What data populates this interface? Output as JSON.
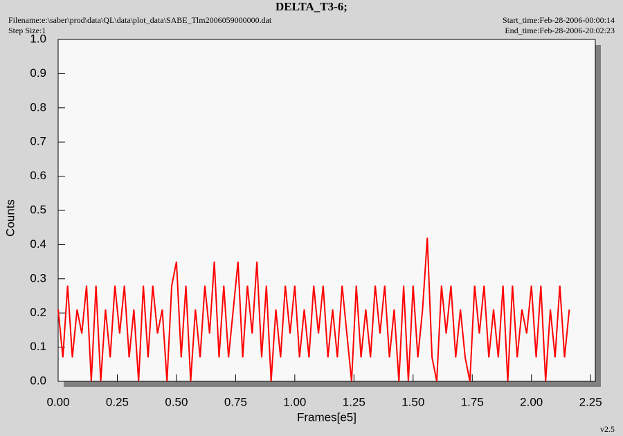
{
  "chart_data": {
    "type": "line",
    "title": "DELTA_T3-6;",
    "filename": "Filename:e:\\saber\\prod\\data\\QL\\data\\plot_data\\SABE_Tlm2006059000000.dat",
    "step_size": "Step Size:1",
    "start_time": "Start_time:Feb-28-2006-00:00:14",
    "end_time": "End_time:Feb-28-2006-20:02:23",
    "x_label": "Frames[e5]",
    "y_label": "Counts",
    "version": "v2.5",
    "color": "#ff0000",
    "xlim": [
      0,
      2.27
    ],
    "ylim": [
      0,
      1
    ],
    "xticks": [
      {
        "value": 0,
        "label": "0.00"
      },
      0.25,
      {
        "value": 0.5,
        "label": "0.50"
      },
      0.75,
      {
        "value": 1,
        "label": "1.00"
      },
      1.25,
      {
        "value": 1.5,
        "label": "1.50"
      },
      1.75,
      {
        "value": 2,
        "label": "2.00"
      },
      2.25
    ],
    "yticks": [
      {
        "value": 0,
        "label": "0.0"
      },
      0.1,
      0.2,
      0.3,
      0.4,
      0.5,
      0.6,
      0.7,
      0.8,
      0.9,
      {
        "value": 1,
        "label": "1.0"
      }
    ],
    "x": [
      0,
      0.02,
      0.04,
      0.06,
      0.08,
      0.1,
      0.12,
      0.14,
      0.16,
      0.18,
      0.2,
      0.22,
      0.24,
      0.26,
      0.28,
      0.3,
      0.32,
      0.34,
      0.36,
      0.38,
      0.4,
      0.42,
      0.44,
      0.46,
      0.48,
      0.5,
      0.52,
      0.54,
      0.56,
      0.58,
      0.6,
      0.62,
      0.64,
      0.66,
      0.68,
      0.7,
      0.72,
      0.74,
      0.76,
      0.78,
      0.8,
      0.82,
      0.84,
      0.86,
      0.88,
      0.9,
      0.92,
      0.94,
      0.96,
      0.98,
      1,
      1.02,
      1.04,
      1.06,
      1.08,
      1.1,
      1.12,
      1.14,
      1.16,
      1.18,
      1.2,
      1.22,
      1.24,
      1.26,
      1.28,
      1.3,
      1.32,
      1.34,
      1.36,
      1.38,
      1.4,
      1.42,
      1.44,
      1.46,
      1.48,
      1.5,
      1.52,
      1.54,
      1.56,
      1.58,
      1.6,
      1.62,
      1.64,
      1.66,
      1.68,
      1.7,
      1.72,
      1.74,
      1.76,
      1.78,
      1.8,
      1.82,
      1.84,
      1.86,
      1.88,
      1.9,
      1.92,
      1.94,
      1.96,
      1.98,
      2,
      2.02,
      2.04,
      2.06,
      2.08,
      2.1,
      2.12,
      2.14,
      2.16
    ],
    "values": [
      0.21,
      0.07,
      0.28,
      0.07,
      0.21,
      0.14,
      0.28,
      0,
      0.28,
      0,
      0.21,
      0.07,
      0.28,
      0.14,
      0.28,
      0.07,
      0.21,
      0,
      0.28,
      0.07,
      0.28,
      0.14,
      0.21,
      0,
      0.28,
      0.35,
      0.07,
      0.28,
      0,
      0.21,
      0.07,
      0.28,
      0.14,
      0.35,
      0.07,
      0.28,
      0.07,
      0.21,
      0.35,
      0.07,
      0.28,
      0.14,
      0.35,
      0.07,
      0.28,
      0,
      0.21,
      0.07,
      0.28,
      0.14,
      0.28,
      0.07,
      0.21,
      0.07,
      0.28,
      0.14,
      0.28,
      0.07,
      0.21,
      0.07,
      0.28,
      0.14,
      0,
      0.28,
      0.07,
      0.21,
      0.07,
      0.28,
      0.14,
      0.28,
      0.07,
      0.21,
      0,
      0.28,
      0,
      0.28,
      0.07,
      0.21,
      0.42,
      0.07,
      0,
      0.28,
      0.14,
      0.28,
      0.07,
      0.21,
      0.07,
      0,
      0.28,
      0.14,
      0.28,
      0.07,
      0.21,
      0.07,
      0.28,
      0,
      0.28,
      0.07,
      0.21,
      0.14,
      0.28,
      0.07,
      0.28,
      0,
      0.21,
      0.07,
      0.28,
      0.07,
      0.21
    ]
  }
}
